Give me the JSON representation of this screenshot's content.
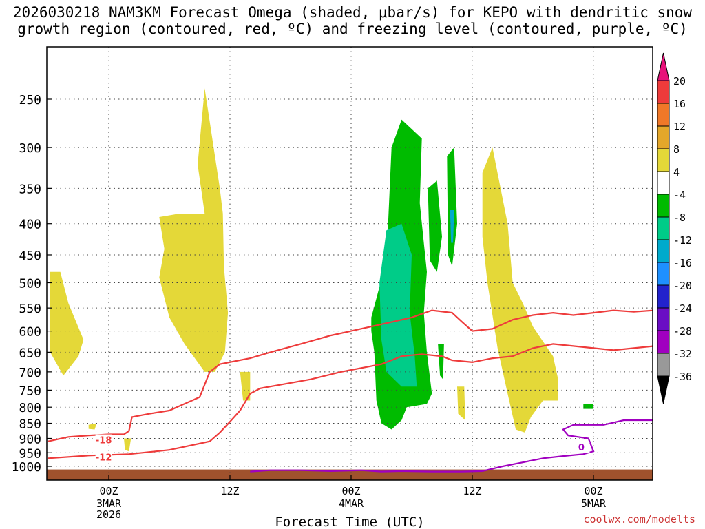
{
  "title_line1": "2026030218 NAM3KM Forecast Omega (shaded, μbar/s) for KEPO with dendritic snow",
  "title_line2": "growth region (contoured, red, ºC) and freezing level (contoured, purple, ºC)",
  "credit": "coolwx.com/modelts",
  "chart_data": {
    "type": "heatmap",
    "xlabel": "Forecast Time (UTC)",
    "ylabel": "",
    "x_ticks": [
      {
        "label": "00Z",
        "sub": [
          "3MAR",
          "2026"
        ],
        "hour": 6
      },
      {
        "label": "12Z",
        "sub": [],
        "hour": 18
      },
      {
        "label": "00Z",
        "sub": [
          "4MAR"
        ],
        "hour": 30
      },
      {
        "label": "12Z",
        "sub": [],
        "hour": 42
      },
      {
        "label": "00Z",
        "sub": [
          "5MAR"
        ],
        "hour": 54
      }
    ],
    "xlim_hours": [
      0,
      60
    ],
    "y_ticks": [
      250,
      300,
      350,
      400,
      450,
      500,
      550,
      600,
      650,
      700,
      750,
      800,
      850,
      900,
      950,
      1000
    ],
    "colorbar": {
      "labels": [
        "20",
        "16",
        "12",
        "8",
        "4",
        "-4",
        "-8",
        "-12",
        "-16",
        "-20",
        "-24",
        "-28",
        "-32",
        "-36"
      ],
      "colors": [
        "#e8137a",
        "#ee3b3b",
        "#f07828",
        "#e4a72a",
        "#e4d838",
        "#ffffff",
        "#00bb00",
        "#00cc88",
        "#00aacc",
        "#1e90ff",
        "#2222cc",
        "#6a0dc4",
        "#a000c0",
        "#999999",
        "#000000"
      ]
    },
    "omega_regions": [
      {
        "color": "#e4d838",
        "value": "4 to 8",
        "points": [
          [
            0.2,
            480
          ],
          [
            1.2,
            480
          ],
          [
            2.0,
            540
          ],
          [
            3.5,
            620
          ],
          [
            3.0,
            660
          ],
          [
            1.5,
            710
          ],
          [
            0.2,
            650
          ]
        ]
      },
      {
        "color": "#e4d838",
        "value": "4 to 8",
        "points": [
          [
            11,
            390
          ],
          [
            13,
            385
          ],
          [
            15.5,
            385
          ],
          [
            14.8,
            320
          ],
          [
            15.5,
            240
          ],
          [
            17,
            350
          ],
          [
            17.3,
            385
          ],
          [
            17.4,
            470
          ],
          [
            17.8,
            560
          ],
          [
            17.5,
            650
          ],
          [
            16.5,
            700
          ],
          [
            15.5,
            700
          ],
          [
            13.5,
            630
          ],
          [
            12,
            570
          ],
          [
            11,
            490
          ],
          [
            11.5,
            440
          ]
        ]
      },
      {
        "color": "#e4d838",
        "value": "4 to 8",
        "points": [
          [
            19,
            700
          ],
          [
            20,
            700
          ],
          [
            20,
            780
          ],
          [
            19.3,
            780
          ]
        ]
      },
      {
        "color": "#e4d838",
        "value": "4 to 8",
        "points": [
          [
            4,
            855
          ],
          [
            4.8,
            850
          ],
          [
            4.6,
            870
          ],
          [
            4.0,
            868
          ]
        ]
      },
      {
        "color": "#e4d838",
        "value": "4 to 8",
        "points": [
          [
            7.5,
            900
          ],
          [
            8.2,
            900
          ],
          [
            8.0,
            945
          ],
          [
            7.6,
            940
          ]
        ]
      },
      {
        "color": "#e4d838",
        "value": "4 to 8",
        "points": [
          [
            43,
            330
          ],
          [
            44,
            300
          ],
          [
            45.5,
            400
          ],
          [
            46,
            500
          ],
          [
            47,
            540
          ],
          [
            48,
            590
          ],
          [
            50,
            660
          ],
          [
            50.5,
            720
          ],
          [
            50.5,
            780
          ],
          [
            49,
            780
          ],
          [
            47.8,
            830
          ],
          [
            47.2,
            880
          ],
          [
            46.3,
            870
          ],
          [
            45.5,
            760
          ],
          [
            44.5,
            640
          ],
          [
            43.5,
            500
          ],
          [
            43,
            420
          ]
        ]
      },
      {
        "color": "#e4d838",
        "value": "4 to 8",
        "points": [
          [
            40.5,
            740
          ],
          [
            41.2,
            740
          ],
          [
            41.3,
            840
          ],
          [
            40.6,
            820
          ]
        ]
      },
      {
        "color": "#00bb00",
        "value": "-4 to -8",
        "points": [
          [
            32,
            570
          ],
          [
            33.5,
            460
          ],
          [
            34,
            300
          ],
          [
            35,
            270
          ],
          [
            37,
            290
          ],
          [
            36.8,
            370
          ],
          [
            37.2,
            430
          ],
          [
            37.5,
            480
          ],
          [
            37.2,
            560
          ],
          [
            37.5,
            650
          ],
          [
            38,
            760
          ],
          [
            37.5,
            790
          ],
          [
            35.5,
            800
          ],
          [
            35,
            840
          ],
          [
            34,
            870
          ],
          [
            33,
            850
          ],
          [
            32.5,
            780
          ],
          [
            32.3,
            650
          ],
          [
            32,
            600
          ]
        ]
      },
      {
        "color": "#00bb00",
        "value": "-4 to -8",
        "points": [
          [
            37.6,
            350
          ],
          [
            38.5,
            340
          ],
          [
            39,
            420
          ],
          [
            38.5,
            480
          ],
          [
            37.8,
            460
          ]
        ]
      },
      {
        "color": "#00bb00",
        "value": "-4 to -8",
        "points": [
          [
            39.5,
            310
          ],
          [
            40.2,
            300
          ],
          [
            40.5,
            400
          ],
          [
            40,
            470
          ],
          [
            39.6,
            450
          ]
        ]
      },
      {
        "color": "#00bb00",
        "value": "-4 to -8",
        "points": [
          [
            38.6,
            630
          ],
          [
            39.2,
            630
          ],
          [
            39.1,
            720
          ],
          [
            38.8,
            710
          ]
        ]
      },
      {
        "color": "#00bb00",
        "value": "-4 to -8",
        "points": [
          [
            53,
            790
          ],
          [
            54,
            790
          ],
          [
            54,
            805
          ],
          [
            53,
            805
          ]
        ]
      },
      {
        "color": "#00cc88",
        "value": "-8 to -12",
        "points": [
          [
            32.8,
            500
          ],
          [
            33.5,
            410
          ],
          [
            35,
            400
          ],
          [
            36,
            450
          ],
          [
            35.8,
            560
          ],
          [
            36.3,
            660
          ],
          [
            36.5,
            740
          ],
          [
            35,
            740
          ],
          [
            33.5,
            700
          ],
          [
            33,
            620
          ]
        ]
      },
      {
        "color": "#00aacc",
        "value": "-12 to -16",
        "points": [
          [
            39.8,
            380
          ],
          [
            40.2,
            380
          ],
          [
            40.1,
            430
          ],
          [
            39.9,
            430
          ]
        ]
      }
    ],
    "contours": [
      {
        "color": "#ee3b3b",
        "label": "-18",
        "label_at": [
          5.5,
          905
        ],
        "points": [
          [
            0,
            910
          ],
          [
            2,
            895
          ],
          [
            4,
            890
          ],
          [
            6,
            886
          ],
          [
            7.5,
            886
          ],
          [
            8,
            875
          ],
          [
            8.3,
            830
          ],
          [
            10,
            820
          ],
          [
            12,
            810
          ],
          [
            15,
            770
          ],
          [
            16,
            700
          ],
          [
            17,
            680
          ],
          [
            20,
            665
          ],
          [
            22,
            650
          ],
          [
            25,
            630
          ],
          [
            28,
            610
          ],
          [
            30,
            600
          ],
          [
            32,
            590
          ],
          [
            34,
            580
          ],
          [
            36,
            570
          ],
          [
            38,
            555
          ],
          [
            40,
            560
          ],
          [
            41,
            580
          ],
          [
            42,
            600
          ],
          [
            44,
            595
          ],
          [
            46,
            575
          ],
          [
            48,
            565
          ],
          [
            50,
            560
          ],
          [
            52,
            565
          ],
          [
            54,
            560
          ],
          [
            56,
            555
          ],
          [
            58,
            558
          ],
          [
            60,
            555
          ]
        ]
      },
      {
        "color": "#ee3b3b",
        "label": "-12",
        "label_at": [
          5.5,
          965
        ],
        "points": [
          [
            0,
            970
          ],
          [
            4,
            960
          ],
          [
            8,
            955
          ],
          [
            12,
            940
          ],
          [
            16,
            910
          ],
          [
            17,
            880
          ],
          [
            18,
            845
          ],
          [
            19,
            810
          ],
          [
            20,
            760
          ],
          [
            21,
            745
          ],
          [
            23,
            735
          ],
          [
            26,
            720
          ],
          [
            29,
            700
          ],
          [
            31,
            690
          ],
          [
            33,
            680
          ],
          [
            34,
            670
          ],
          [
            35,
            660
          ],
          [
            37,
            655
          ],
          [
            39,
            660
          ],
          [
            40,
            670
          ],
          [
            42,
            675
          ],
          [
            44,
            665
          ],
          [
            46,
            660
          ],
          [
            48,
            640
          ],
          [
            50,
            630
          ],
          [
            52,
            635
          ],
          [
            54,
            640
          ],
          [
            56,
            645
          ],
          [
            58,
            640
          ],
          [
            60,
            635
          ]
        ]
      },
      {
        "color": "#a000c0",
        "label": "0",
        "label_at": [
          52.8,
          930
        ],
        "points": [
          [
            20,
            1020
          ],
          [
            22,
            1015
          ],
          [
            25,
            1015
          ],
          [
            28,
            1018
          ],
          [
            31,
            1015
          ],
          [
            33,
            1020
          ],
          [
            35,
            1018
          ],
          [
            38,
            1020
          ],
          [
            41,
            1020
          ],
          [
            43,
            1018
          ],
          [
            45,
            1000
          ],
          [
            47,
            985
          ],
          [
            49,
            970
          ],
          [
            51,
            962
          ],
          [
            53,
            955
          ],
          [
            54,
            945
          ],
          [
            53.5,
            900
          ],
          [
            51.5,
            890
          ],
          [
            51,
            870
          ],
          [
            52,
            855
          ],
          [
            55,
            855
          ],
          [
            57,
            840
          ],
          [
            60,
            840
          ]
        ]
      }
    ],
    "ground": {
      "color": "#a0522d",
      "pressure": 1012
    }
  }
}
